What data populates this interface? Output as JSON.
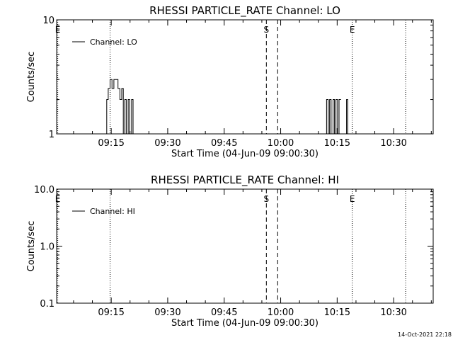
{
  "footer": {
    "timestamp": "14-Oct-2021 22:18"
  },
  "chart_data": [
    {
      "type": "line",
      "title": "RHESSI PARTICLE_RATE Channel: LO",
      "xlabel": "Start Time (04-Jun-09 09:00:30)",
      "ylabel": "Counts/sec",
      "yscale": "log",
      "xlim_minutes": [
        0.5,
        100.5
      ],
      "ylim": [
        1,
        10
      ],
      "yticks": [
        {
          "v": 1,
          "label": "1"
        },
        {
          "v": 10,
          "label": "10"
        }
      ],
      "xticks": [
        {
          "v": 15,
          "label": "09:15"
        },
        {
          "v": 30,
          "label": "09:30"
        },
        {
          "v": 45,
          "label": "09:45"
        },
        {
          "v": 60,
          "label": "10:00"
        },
        {
          "v": 75,
          "label": "10:15"
        },
        {
          "v": 90,
          "label": "10:30"
        }
      ],
      "legend": "Channel: LO",
      "legend_position": "top-left",
      "markers": [
        {
          "x": 0.8,
          "style": "dotted",
          "label": "E"
        },
        {
          "x": 14.7,
          "style": "dotted",
          "label": ""
        },
        {
          "x": 56.2,
          "style": "dashed",
          "label": "S"
        },
        {
          "x": 59.2,
          "style": "dashed",
          "label": ""
        },
        {
          "x": 79.0,
          "style": "dotted",
          "label": "E"
        },
        {
          "x": 93.2,
          "style": "dotted",
          "label": ""
        }
      ],
      "series": [
        {
          "name": "Channel: LO",
          "x": [
            13.6,
            13.8,
            13.8,
            14.2,
            14.2,
            14.7,
            14.7,
            15.2,
            15.2,
            15.7,
            15.7,
            16.8,
            16.8,
            17.3,
            17.3,
            17.8,
            17.8,
            18.2,
            18.2,
            18.6,
            18.6,
            19.0,
            19.0,
            19.5,
            19.5,
            19.9,
            19.9,
            20.4,
            20.4,
            20.8,
            20.8,
            21.3
          ],
          "y": [
            1,
            1,
            2,
            2,
            2.5,
            2.5,
            3,
            3,
            2.5,
            2.5,
            3,
            3,
            2.5,
            2.5,
            2,
            2,
            2.5,
            2.5,
            1,
            1,
            2,
            2,
            1,
            1,
            2,
            2,
            1,
            1,
            2,
            2,
            1,
            1
          ]
        },
        {
          "name": "Channel: LO",
          "x": [
            71.8,
            72.2,
            72.2,
            72.6,
            72.6,
            73.0,
            73.0,
            73.4,
            73.4,
            73.9,
            73.9,
            74.3,
            74.3,
            74.7,
            74.7,
            75.1,
            75.1,
            75.5,
            75.5,
            76.0
          ],
          "y": [
            1,
            1,
            2,
            2,
            1,
            1,
            2,
            2,
            1,
            1,
            2,
            2,
            1,
            1,
            2,
            2,
            1,
            1,
            2,
            2
          ]
        },
        {
          "name": "Channel: LO",
          "x": [
            77.3,
            77.5,
            77.5,
            77.8,
            77.8,
            78.0
          ],
          "y": [
            1,
            1,
            2,
            2,
            1,
            1
          ]
        }
      ]
    },
    {
      "type": "line",
      "title": "RHESSI PARTICLE_RATE Channel: HI",
      "xlabel": "Start Time (04-Jun-09 09:00:30)",
      "ylabel": "Counts/sec",
      "yscale": "log",
      "xlim_minutes": [
        0.5,
        100.5
      ],
      "ylim": [
        0.1,
        10
      ],
      "yticks": [
        {
          "v": 0.1,
          "label": "0.1"
        },
        {
          "v": 1,
          "label": "1.0"
        },
        {
          "v": 10,
          "label": "10.0"
        }
      ],
      "xticks": [
        {
          "v": 15,
          "label": "09:15"
        },
        {
          "v": 30,
          "label": "09:30"
        },
        {
          "v": 45,
          "label": "09:45"
        },
        {
          "v": 60,
          "label": "10:00"
        },
        {
          "v": 75,
          "label": "10:15"
        },
        {
          "v": 90,
          "label": "10:30"
        }
      ],
      "legend": "Channel: HI",
      "legend_position": "top-left",
      "markers": [
        {
          "x": 0.8,
          "style": "dotted",
          "label": "E"
        },
        {
          "x": 14.7,
          "style": "dotted",
          "label": ""
        },
        {
          "x": 56.2,
          "style": "dashed",
          "label": "S"
        },
        {
          "x": 59.2,
          "style": "dashed",
          "label": ""
        },
        {
          "x": 79.0,
          "style": "dotted",
          "label": "E"
        },
        {
          "x": 93.2,
          "style": "dotted",
          "label": ""
        }
      ],
      "series": [
        {
          "name": "Channel: HI",
          "x": [],
          "y": []
        }
      ]
    }
  ]
}
